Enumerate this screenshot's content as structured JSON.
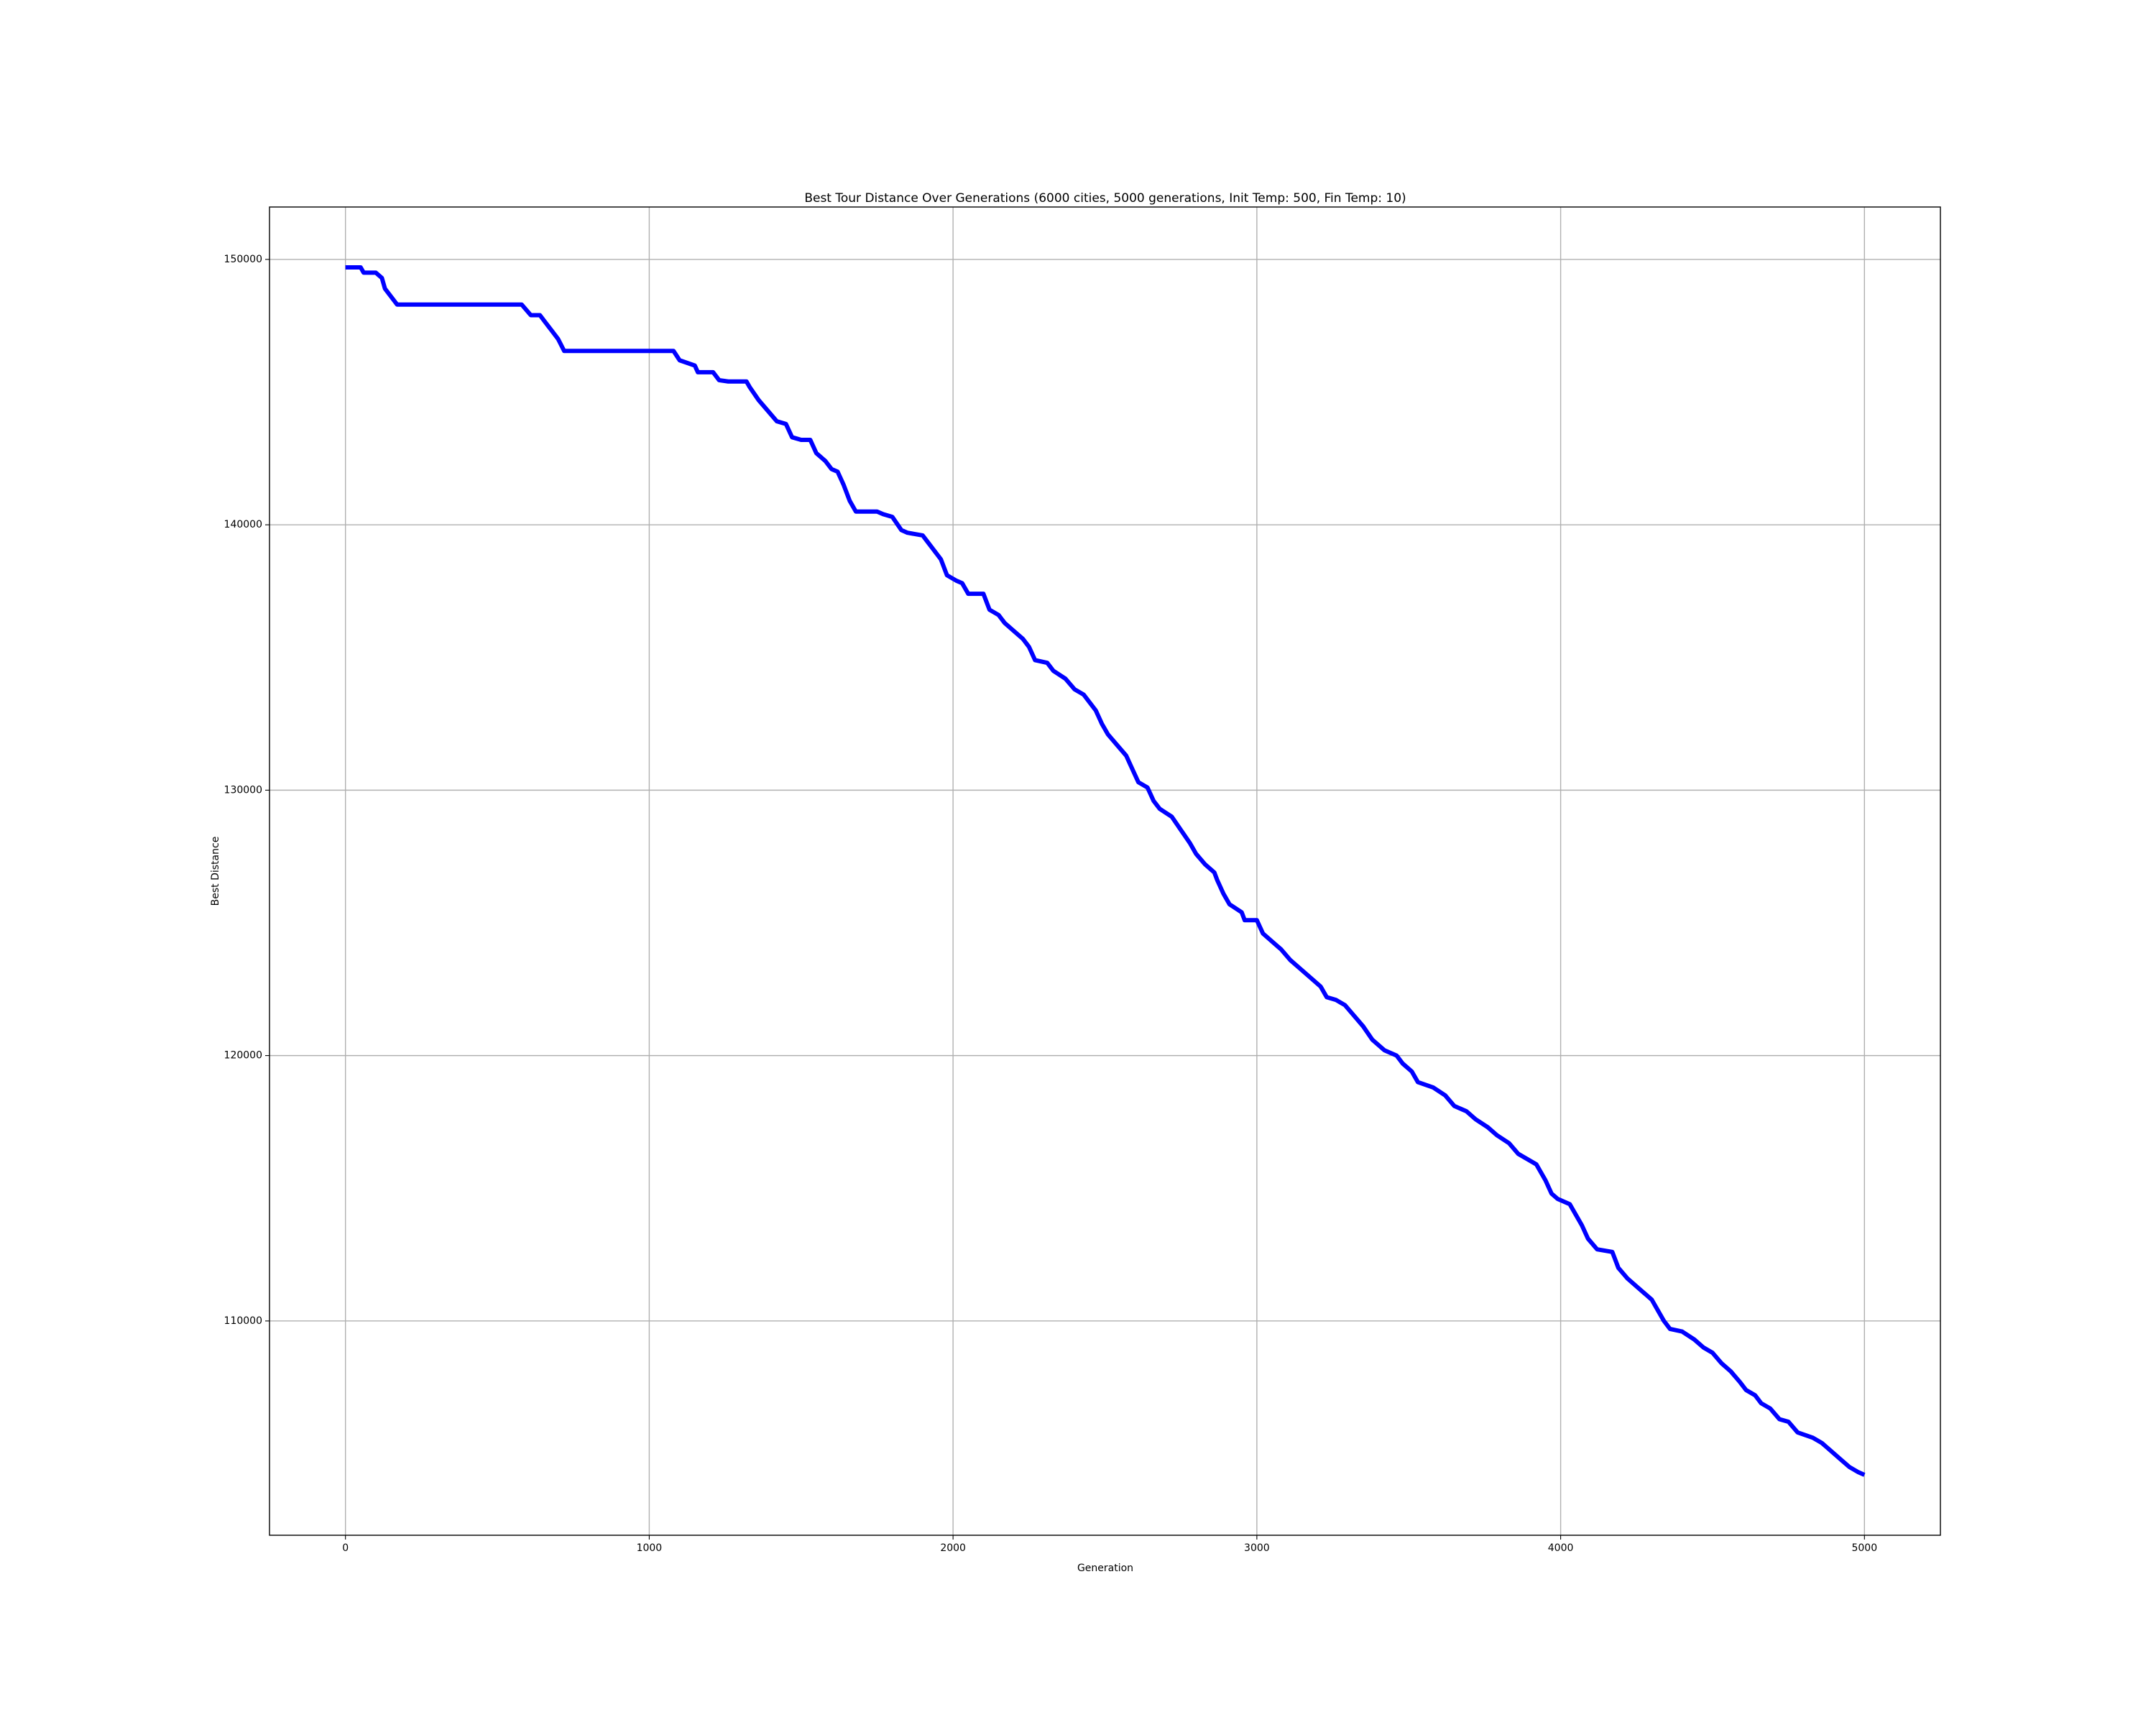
{
  "chart_data": {
    "type": "line",
    "title": "Best Tour Distance Over Generations (6000 cities, 5000 generations, Init Temp: 500, Fin Temp: 10)",
    "x_label": "Generation",
    "y_label": "Best Distance",
    "x": [
      0,
      50,
      60,
      100,
      120,
      130,
      170,
      580,
      610,
      640,
      680,
      700,
      720,
      1080,
      1100,
      1150,
      1160,
      1210,
      1230,
      1260,
      1320,
      1330,
      1360,
      1390,
      1420,
      1450,
      1470,
      1500,
      1530,
      1550,
      1580,
      1600,
      1620,
      1640,
      1660,
      1680,
      1750,
      1770,
      1800,
      1830,
      1850,
      1900,
      1920,
      1960,
      1980,
      2010,
      2030,
      2050,
      2100,
      2120,
      2150,
      2170,
      2200,
      2230,
      2250,
      2270,
      2310,
      2330,
      2370,
      2400,
      2430,
      2470,
      2490,
      2510,
      2540,
      2570,
      2590,
      2610,
      2640,
      2660,
      2680,
      2720,
      2750,
      2780,
      2800,
      2830,
      2860,
      2870,
      2890,
      2910,
      2950,
      2960,
      3000,
      3020,
      3050,
      3080,
      3110,
      3140,
      3180,
      3210,
      3230,
      3260,
      3290,
      3320,
      3350,
      3380,
      3420,
      3460,
      3480,
      3510,
      3530,
      3580,
      3620,
      3650,
      3690,
      3720,
      3760,
      3790,
      3830,
      3860,
      3890,
      3920,
      3950,
      3970,
      3990,
      4030,
      4050,
      4070,
      4090,
      4120,
      4170,
      4190,
      4220,
      4250,
      4280,
      4300,
      4320,
      4340,
      4360,
      4400,
      4440,
      4470,
      4500,
      4530,
      4560,
      4590,
      4610,
      4640,
      4660,
      4690,
      4720,
      4750,
      4780,
      4830,
      4860,
      4890,
      4920,
      4950,
      4980,
      5000
    ],
    "series": [
      {
        "name": "Best Distance",
        "color": "#0000ff",
        "values": [
          149700,
          149700,
          149500,
          149500,
          149300,
          148900,
          148300,
          148300,
          147900,
          147900,
          147300,
          147000,
          146550,
          146550,
          146200,
          146000,
          145750,
          145750,
          145450,
          145400,
          145400,
          145200,
          144700,
          144300,
          143900,
          143800,
          143300,
          143200,
          143200,
          142700,
          142400,
          142100,
          142000,
          141500,
          140900,
          140500,
          140500,
          140400,
          140300,
          139800,
          139700,
          139600,
          139300,
          138700,
          138100,
          137900,
          137800,
          137400,
          137400,
          136800,
          136600,
          136300,
          136000,
          135700,
          135400,
          134900,
          134800,
          134500,
          134200,
          133800,
          133600,
          133000,
          132500,
          132100,
          131700,
          131300,
          130800,
          130300,
          130100,
          129600,
          129300,
          129000,
          128500,
          128000,
          127600,
          127200,
          126900,
          126600,
          126100,
          125700,
          125400,
          125100,
          125100,
          124600,
          124300,
          124000,
          123600,
          123300,
          122900,
          122600,
          122200,
          122100,
          121900,
          121500,
          121100,
          120600,
          120200,
          120000,
          119700,
          119400,
          119000,
          118800,
          118500,
          118100,
          117900,
          117600,
          117300,
          117000,
          116700,
          116300,
          116100,
          115900,
          115300,
          114800,
          114600,
          114400,
          114000,
          113600,
          113100,
          112700,
          112600,
          112000,
          111600,
          111300,
          111000,
          110800,
          110400,
          110000,
          109700,
          109600,
          109300,
          109000,
          108800,
          108400,
          108100,
          107700,
          107400,
          107200,
          106900,
          106700,
          106300,
          106200,
          105800,
          105600,
          105400,
          105100,
          104800,
          104500,
          104300,
          104200
        ]
      }
    ],
    "xlim": [
      -250,
      5250
    ],
    "ylim": [
      101925,
      151975
    ],
    "xticks": [
      0,
      1000,
      2000,
      3000,
      4000,
      5000
    ],
    "yticks": [
      110000,
      120000,
      130000,
      140000,
      150000
    ],
    "grid": true
  }
}
